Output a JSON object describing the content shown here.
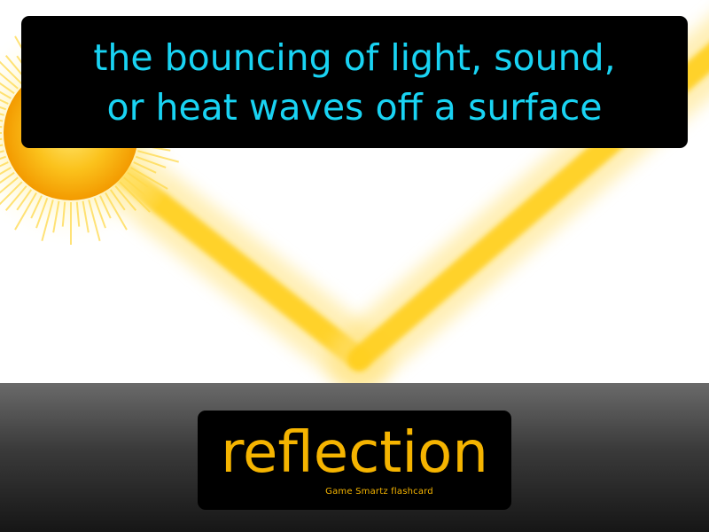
{
  "definition": {
    "lines": [
      "the bouncing of light, sound,",
      "or heat waves off a surface"
    ]
  },
  "term": {
    "word": "reflection",
    "brand": "Game Smartz flashcard"
  },
  "illustration": {
    "icons": [
      "sun-icon",
      "incoming-light-ray",
      "reflected-light-ray"
    ]
  },
  "colors": {
    "definition_text": "#19d3f3",
    "term_text": "#f5b400",
    "card_background": "#000000",
    "sun": "#f7a800",
    "ray": "#ffd21a"
  }
}
